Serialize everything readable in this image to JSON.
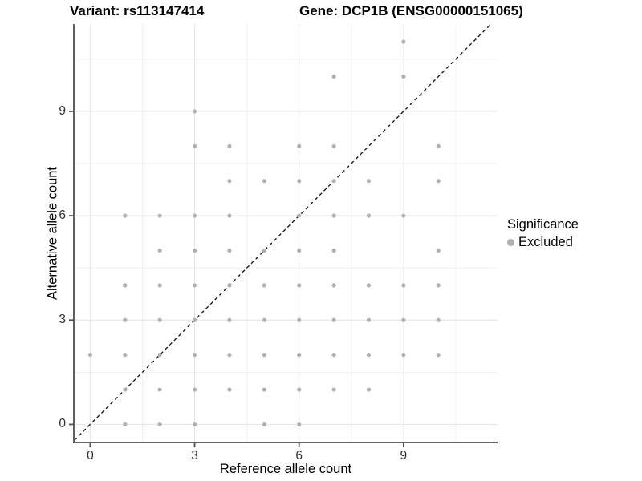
{
  "titles": {
    "variant": "Variant: rs113147414",
    "gene": "Gene: DCP1B (ENSG00000151065)"
  },
  "legend": {
    "title": "Significance",
    "items": [
      {
        "label": "Excluded",
        "color": "#b1b1b1"
      }
    ]
  },
  "colors": {
    "point": "#b1b1b1",
    "grid_major": "#e4e4e4",
    "grid_minor": "#f1f1f1",
    "axis_line": "#4f4f4f",
    "identity_line": "#111111",
    "background": "#ffffff"
  },
  "chart_data": {
    "type": "scatter",
    "title_left": "Variant: rs113147414",
    "title_right": "Gene: DCP1B (ENSG00000151065)",
    "xlabel": "Reference allele count",
    "ylabel": "Alternative allele count",
    "xlim": [
      -0.47,
      11.7
    ],
    "ylim": [
      -0.52,
      11.51
    ],
    "x_ticks": [
      0,
      3,
      6,
      9
    ],
    "y_ticks": [
      0,
      3,
      6,
      9
    ],
    "x_minor": [
      1.5,
      4.5,
      7.5,
      10.5
    ],
    "y_minor": [
      1.5,
      4.5,
      7.5,
      10.5
    ],
    "grid": "on",
    "identity_line": {
      "show": true,
      "style": "dashed",
      "equation": "y = x"
    },
    "legend_position": "right",
    "series": [
      {
        "name": "Excluded",
        "color": "#b1b1b1",
        "points": [
          [
            0,
            2
          ],
          [
            1,
            0
          ],
          [
            1,
            1
          ],
          [
            1,
            2
          ],
          [
            1,
            3
          ],
          [
            1,
            4
          ],
          [
            1,
            6
          ],
          [
            2,
            0
          ],
          [
            2,
            1
          ],
          [
            2,
            2
          ],
          [
            2,
            3
          ],
          [
            2,
            4
          ],
          [
            2,
            5
          ],
          [
            2,
            6
          ],
          [
            3,
            0
          ],
          [
            3,
            1
          ],
          [
            3,
            2
          ],
          [
            3,
            3
          ],
          [
            3,
            4
          ],
          [
            3,
            5
          ],
          [
            3,
            6
          ],
          [
            3,
            8
          ],
          [
            3,
            9
          ],
          [
            4,
            1
          ],
          [
            4,
            2
          ],
          [
            4,
            3
          ],
          [
            4,
            4
          ],
          [
            4,
            5
          ],
          [
            4,
            6
          ],
          [
            4,
            7
          ],
          [
            4,
            8
          ],
          [
            5,
            0
          ],
          [
            5,
            1
          ],
          [
            5,
            2
          ],
          [
            5,
            3
          ],
          [
            5,
            4
          ],
          [
            5,
            5
          ],
          [
            5,
            7
          ],
          [
            6,
            0
          ],
          [
            6,
            1
          ],
          [
            6,
            2
          ],
          [
            6,
            3
          ],
          [
            6,
            4
          ],
          [
            6,
            5
          ],
          [
            6,
            6
          ],
          [
            6,
            7
          ],
          [
            6,
            8
          ],
          [
            7,
            1
          ],
          [
            7,
            2
          ],
          [
            7,
            3
          ],
          [
            7,
            4
          ],
          [
            7,
            5
          ],
          [
            7,
            6
          ],
          [
            7,
            7
          ],
          [
            7,
            8
          ],
          [
            7,
            10
          ],
          [
            8,
            1
          ],
          [
            8,
            2
          ],
          [
            8,
            3
          ],
          [
            8,
            4
          ],
          [
            8,
            6
          ],
          [
            8,
            7
          ],
          [
            9,
            2
          ],
          [
            9,
            3
          ],
          [
            9,
            4
          ],
          [
            9,
            6
          ],
          [
            9,
            10
          ],
          [
            9,
            11
          ],
          [
            10,
            2
          ],
          [
            10,
            3
          ],
          [
            10,
            4
          ],
          [
            10,
            5
          ],
          [
            10,
            7
          ],
          [
            10,
            8
          ]
        ]
      }
    ]
  }
}
